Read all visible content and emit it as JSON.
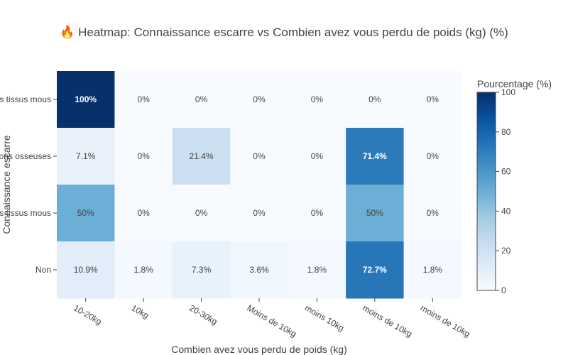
{
  "chart_data": {
    "type": "heatmap",
    "title": "🔥 Heatmap: Connaissance escarre vs Combien avez vous perdu de poids (kg) (%)",
    "xlabel": "Combien avez vous perdu de poids (kg)",
    "ylabel": "Connaissance escarre",
    "x_categories": [
      "10-20kg",
      "10kg",
      "20-30kg",
      "Moins de 10kg",
      "moins 10kg",
      "moins de 10kg",
      "moins de 10kg"
    ],
    "y_categories": [
      "es tissus mous",
      "lons osseuses",
      "s tissus mous",
      "Non"
    ],
    "values": [
      [
        100,
        0,
        0,
        0,
        0,
        0,
        0
      ],
      [
        7.1,
        0,
        21.4,
        0,
        0,
        71.4,
        0
      ],
      [
        50,
        0,
        0,
        0,
        0,
        50,
        0
      ],
      [
        10.9,
        1.8,
        7.3,
        3.6,
        1.8,
        72.7,
        1.8
      ]
    ],
    "cell_labels": [
      [
        "100%",
        "0%",
        "0%",
        "0%",
        "0%",
        "0%",
        "0%"
      ],
      [
        "7.1%",
        "0%",
        "21.4%",
        "0%",
        "0%",
        "71.4%",
        "0%"
      ],
      [
        "50%",
        "0%",
        "0%",
        "0%",
        "0%",
        "50%",
        "0%"
      ],
      [
        "10.9%",
        "1.8%",
        "7.3%",
        "3.6%",
        "1.8%",
        "72.7%",
        "1.8%"
      ]
    ],
    "colorbar": {
      "title": "Pourcentage (%)",
      "range": [
        0,
        100
      ],
      "ticks": [
        "0",
        "20",
        "40",
        "60",
        "80",
        "100"
      ],
      "colorscale": "Blues"
    }
  }
}
